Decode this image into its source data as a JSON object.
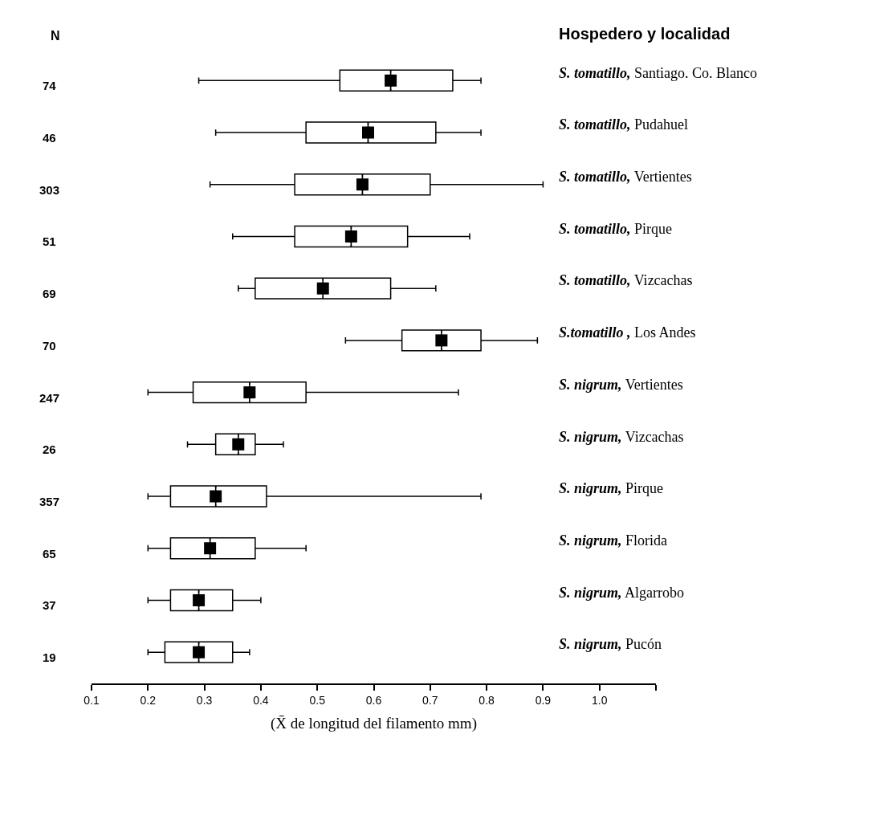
{
  "chart_data": {
    "type": "box",
    "orientation": "horizontal",
    "marker": "square",
    "categories": [
      "S. tomatillo, Santiago. Co. Blanco",
      "S. tomatillo, Pudahuel",
      "S. tomatillo, Vertientes",
      "S. tomatillo, Pirque",
      "S. tomatillo, Vizcachas",
      "S.tomatillo , Los Andes",
      "S. nigrum, Vertientes",
      "S. nigrum, Vizcachas",
      "S. nigrum, Pirque",
      "S. nigrum, Florida",
      "S. nigrum, Algarrobo",
      "S. nigrum, Pucón"
    ],
    "boxes": [
      {
        "low": 0.29,
        "q1": 0.54,
        "median": 0.63,
        "q3": 0.74,
        "high": 0.79,
        "mean": 0.63
      },
      {
        "low": 0.32,
        "q1": 0.48,
        "median": 0.59,
        "q3": 0.71,
        "high": 0.79,
        "mean": 0.59
      },
      {
        "low": 0.31,
        "q1": 0.46,
        "median": 0.58,
        "q3": 0.7,
        "high": 0.9,
        "mean": 0.58
      },
      {
        "low": 0.35,
        "q1": 0.46,
        "median": 0.56,
        "q3": 0.66,
        "high": 0.77,
        "mean": 0.56
      },
      {
        "low": 0.36,
        "q1": 0.39,
        "median": 0.51,
        "q3": 0.63,
        "high": 0.71,
        "mean": 0.51
      },
      {
        "low": 0.55,
        "q1": 0.65,
        "median": 0.72,
        "q3": 0.79,
        "high": 0.89,
        "mean": 0.72
      },
      {
        "low": 0.2,
        "q1": 0.28,
        "median": 0.38,
        "q3": 0.48,
        "high": 0.75,
        "mean": 0.38
      },
      {
        "low": 0.27,
        "q1": 0.32,
        "median": 0.36,
        "q3": 0.39,
        "high": 0.44,
        "mean": 0.36
      },
      {
        "low": 0.2,
        "q1": 0.24,
        "median": 0.32,
        "q3": 0.41,
        "high": 0.79,
        "mean": 0.32
      },
      {
        "low": 0.2,
        "q1": 0.24,
        "median": 0.31,
        "q3": 0.39,
        "high": 0.48,
        "mean": 0.31
      },
      {
        "low": 0.2,
        "q1": 0.24,
        "median": 0.29,
        "q3": 0.35,
        "high": 0.4,
        "mean": 0.29
      },
      {
        "low": 0.2,
        "q1": 0.23,
        "median": 0.29,
        "q3": 0.35,
        "high": 0.38,
        "mean": 0.29
      }
    ],
    "xlim": [
      0.1,
      1.1
    ],
    "xticks": [
      0.1,
      0.2,
      0.3,
      0.4,
      0.5,
      0.6,
      0.7,
      0.8,
      0.9,
      {
        "value": 1.0,
        "label": "1.0"
      },
      {
        "value": 1.1,
        "label": null
      }
    ],
    "xlabel": "(X̄ de longitud del filamento mm)",
    "annotations": [
      "N",
      "Hospedero y localidad",
      "74",
      "46",
      "303",
      "51",
      "69",
      "70",
      "247",
      "26",
      "357",
      "65",
      "37",
      "19"
    ]
  }
}
